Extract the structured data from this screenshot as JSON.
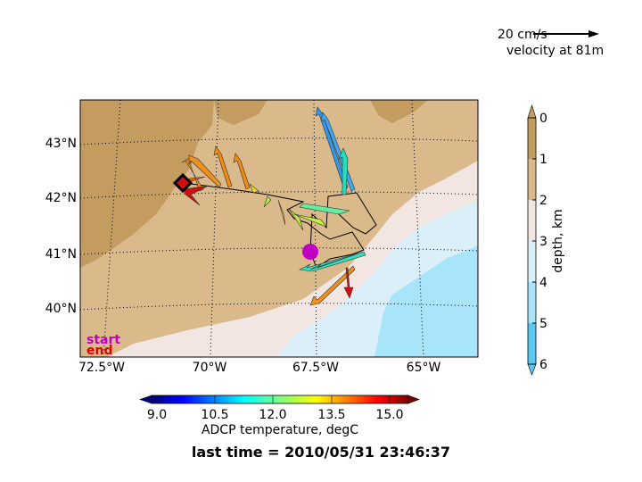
{
  "map": {
    "lat_ticks": [
      "43°N",
      "42°N",
      "41°N",
      "40°N"
    ],
    "lon_ticks": [
      "72.5°W",
      "70°W",
      "67.5°W",
      "65°W"
    ],
    "legend_start": "start",
    "legend_end": "end"
  },
  "velocity_key": {
    "label": "20 cm/s",
    "sublabel": "velocity at 81m"
  },
  "temperature_colorbar": {
    "ticks": [
      "9.0",
      "10.5",
      "12.0",
      "13.5",
      "15.0"
    ],
    "label": "ADCP temperature, degC"
  },
  "depth_colorbar": {
    "ticks": [
      "0",
      "1",
      "2",
      "3",
      "4",
      "5",
      "6"
    ],
    "label": "depth, km"
  },
  "footer": "last time = 2010/05/31 23:46:37"
}
